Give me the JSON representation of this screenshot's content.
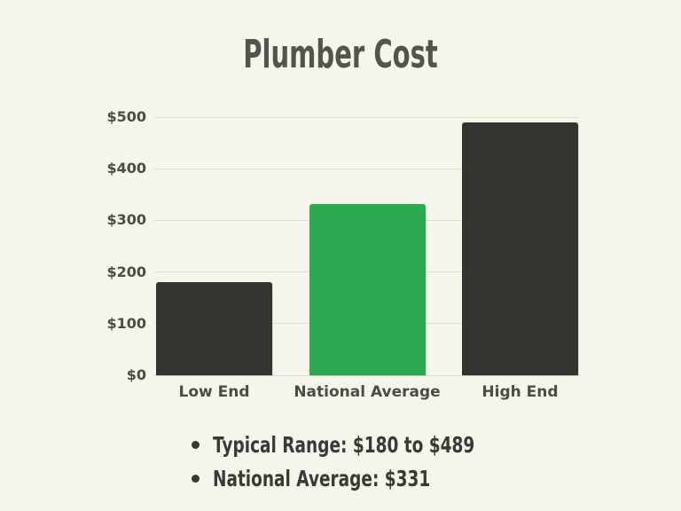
{
  "title": "Plumber Cost",
  "chart_data": {
    "type": "bar",
    "title": "Plumber Cost",
    "categories": [
      "Low End",
      "National Average",
      "High End"
    ],
    "values": [
      180,
      331,
      489
    ],
    "bar_colors": [
      "#333330",
      "#2baa51",
      "#333330"
    ],
    "ylim": [
      0,
      500
    ],
    "yticks": [
      0,
      100,
      200,
      300,
      400,
      500
    ],
    "ytick_labels": [
      "$0",
      "$100",
      "$200",
      "$300",
      "$400",
      "$500"
    ],
    "xlabel": "",
    "ylabel": "",
    "grid": true,
    "legend": false
  },
  "notes": {
    "items": [
      "Typical Range: $180 to $489",
      "National Average: $331"
    ]
  },
  "colors": {
    "background": "#f6f5ec",
    "gridline": "#deddd2",
    "bar_dark": "#333330",
    "bar_accent": "#2baa51",
    "text_dark": "#3a3935",
    "axis_label": "#4c4b47",
    "title": "#55534d"
  }
}
